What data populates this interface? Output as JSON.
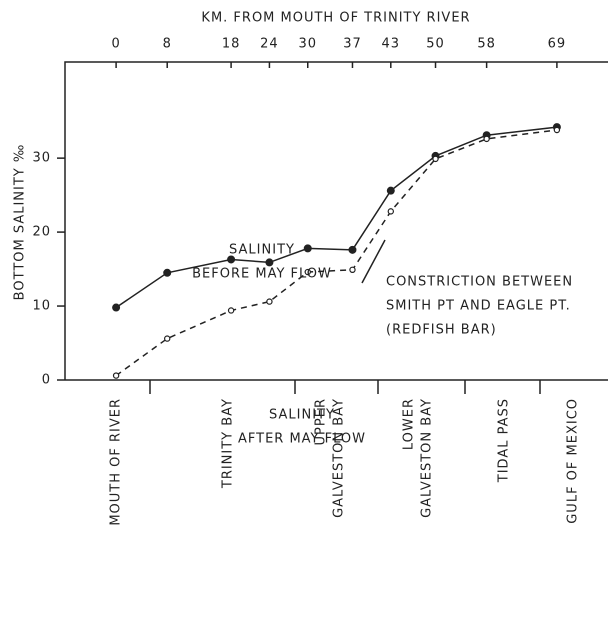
{
  "chart_data": {
    "type": "line",
    "x_title": "KM. FROM MOUTH OF TRINITY RIVER",
    "y_title": "BOTTOM SALINITY ‰",
    "x": [
      0,
      8,
      18,
      24,
      30,
      37,
      43,
      50,
      58,
      69
    ],
    "xlim": [
      -8,
      77
    ],
    "xticks": [
      0,
      8,
      18,
      24,
      30,
      37,
      43,
      50,
      58,
      69
    ],
    "ylim": [
      0,
      43
    ],
    "yticks": [
      0,
      10,
      20,
      30
    ],
    "series": [
      {
        "name": "SALINITY BEFORE MAY FLOW",
        "color": "#222",
        "line_style": "solid",
        "marker": "filled",
        "values": [
          9.8,
          14.5,
          16.3,
          15.9,
          17.8,
          17.6,
          25.6,
          30.3,
          33.1,
          34.2
        ]
      },
      {
        "name": "SALINITY AFTER MAY FLOW",
        "color": "#222",
        "line_style": "dashed",
        "marker": "open",
        "values": [
          0.6,
          5.6,
          9.4,
          10.6,
          14.6,
          14.9,
          22.8,
          29.9,
          32.6,
          33.8
        ]
      }
    ],
    "annotations": [
      {
        "lines": [
          "SALINITY",
          "BEFORE MAY FLOW"
        ]
      },
      {
        "lines": [
          "SALINITY",
          "AFTER MAY FLOW"
        ]
      },
      {
        "lines": [
          "CONSTRICTION BETWEEN",
          "SMITH PT AND EAGLE PT.",
          "(REDFISH BAR)"
        ]
      }
    ],
    "regions": [
      {
        "lines": [
          "MOUTH OF RIVER"
        ]
      },
      {
        "lines": [
          "TRINITY BAY"
        ]
      },
      {
        "lines": [
          "UPPER",
          "GALVESTON BAY"
        ]
      },
      {
        "lines": [
          "LOWER",
          "GALVESTON BAY"
        ]
      },
      {
        "lines": [
          "TIDAL PASS"
        ]
      },
      {
        "lines": [
          "GULF OF MEXICO"
        ]
      }
    ]
  }
}
